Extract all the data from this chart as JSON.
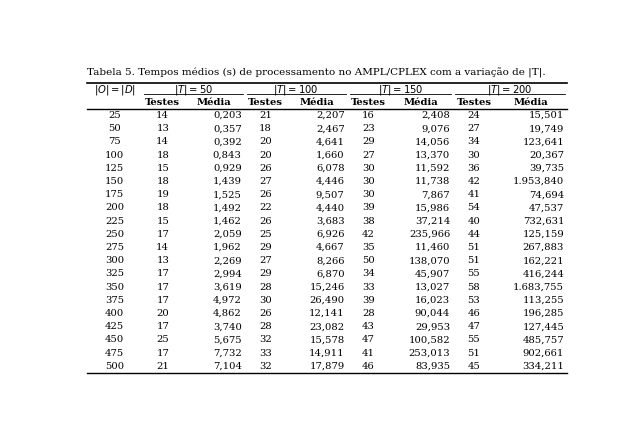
{
  "title": "Tabela 5. Tempos médios (s) de processamento no AMPL/CPLEX com a variação de |T|.",
  "rows": [
    [
      "25",
      "14",
      "0,203",
      "21",
      "2,207",
      "16",
      "2,408",
      "24",
      "15,501"
    ],
    [
      "50",
      "13",
      "0,357",
      "18",
      "2,467",
      "23",
      "9,076",
      "27",
      "19,749"
    ],
    [
      "75",
      "14",
      "0,392",
      "20",
      "4,641",
      "29",
      "14,056",
      "34",
      "123,641"
    ],
    [
      "100",
      "18",
      "0,843",
      "20",
      "1,660",
      "27",
      "13,370",
      "30",
      "20,367"
    ],
    [
      "125",
      "15",
      "0,929",
      "26",
      "6,078",
      "30",
      "11,592",
      "36",
      "39,735"
    ],
    [
      "150",
      "18",
      "1,439",
      "27",
      "4,446",
      "30",
      "11,738",
      "42",
      "1.953,840"
    ],
    [
      "175",
      "19",
      "1,525",
      "26",
      "9,507",
      "30",
      "7,867",
      "41",
      "74,694"
    ],
    [
      "200",
      "18",
      "1,492",
      "22",
      "4,440",
      "39",
      "15,986",
      "54",
      "47,537"
    ],
    [
      "225",
      "15",
      "1,462",
      "26",
      "3,683",
      "38",
      "37,214",
      "40",
      "732,631"
    ],
    [
      "250",
      "17",
      "2,059",
      "25",
      "6,926",
      "42",
      "235,966",
      "44",
      "125,159"
    ],
    [
      "275",
      "14",
      "1,962",
      "29",
      "4,667",
      "35",
      "11,460",
      "51",
      "267,883"
    ],
    [
      "300",
      "13",
      "2,269",
      "27",
      "8,266",
      "50",
      "138,070",
      "51",
      "162,221"
    ],
    [
      "325",
      "17",
      "2,994",
      "29",
      "6,870",
      "34",
      "45,907",
      "55",
      "416,244"
    ],
    [
      "350",
      "17",
      "3,619",
      "28",
      "15,246",
      "33",
      "13,027",
      "58",
      "1.683,755"
    ],
    [
      "375",
      "17",
      "4,972",
      "30",
      "26,490",
      "39",
      "16,023",
      "53",
      "113,255"
    ],
    [
      "400",
      "20",
      "4,862",
      "26",
      "12,141",
      "28",
      "90,044",
      "46",
      "196,285"
    ],
    [
      "425",
      "17",
      "3,740",
      "28",
      "23,082",
      "43",
      "29,953",
      "47",
      "127,445"
    ],
    [
      "450",
      "25",
      "5,675",
      "32",
      "15,578",
      "47",
      "100,582",
      "55",
      "485,757"
    ],
    [
      "475",
      "17",
      "7,732",
      "33",
      "14,911",
      "41",
      "253,013",
      "51",
      "902,661"
    ],
    [
      "500",
      "21",
      "7,104",
      "32",
      "17,879",
      "46",
      "83,935",
      "45",
      "334,211"
    ]
  ],
  "background_color": "#ffffff",
  "line_color": "#000000",
  "text_color": "#000000",
  "font_size": 7.2,
  "title_font_size": 7.5
}
